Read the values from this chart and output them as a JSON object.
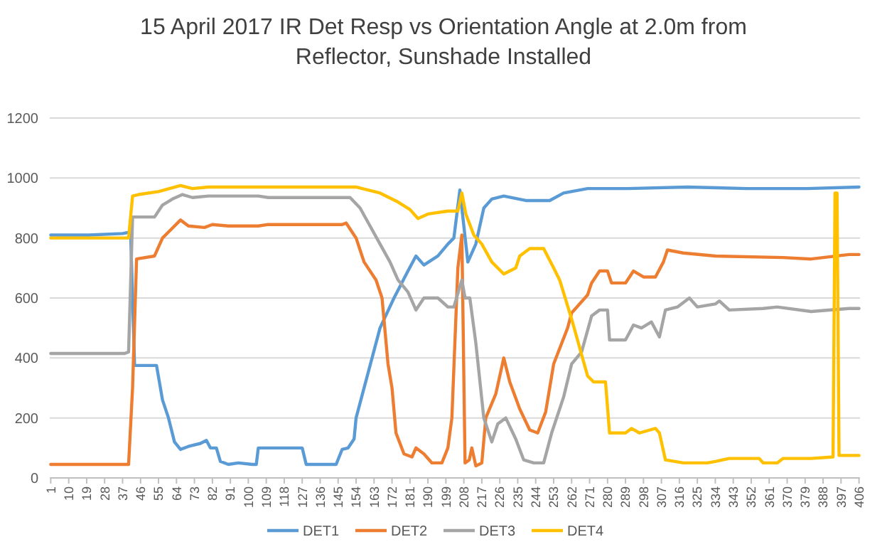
{
  "chart_data": {
    "type": "line",
    "title": "15 April 2017 IR Det Resp vs Orientation Angle at 2.0m from Reflector, Sunshade Installed",
    "xlim": [
      0.5,
      406.5
    ],
    "xticks": [
      1,
      10,
      19,
      28,
      37,
      46,
      55,
      64,
      73,
      82,
      91,
      100,
      109,
      118,
      127,
      136,
      145,
      154,
      163,
      172,
      181,
      190,
      199,
      208,
      217,
      226,
      235,
      244,
      253,
      262,
      271,
      280,
      289,
      298,
      307,
      316,
      325,
      334,
      343,
      352,
      361,
      370,
      379,
      388,
      397,
      406
    ],
    "ylim": [
      0,
      1200
    ],
    "yticks": [
      0,
      200,
      400,
      600,
      800,
      1000,
      1200
    ],
    "grid": "y",
    "legend": "bottom",
    "marker": "none",
    "line_style": "solid",
    "series": [
      {
        "name": "DET1",
        "color": "#5b9bd5",
        "x": [
          1,
          20,
          37,
          41,
          42,
          43,
          54,
          57,
          60,
          63,
          66,
          70,
          76,
          79,
          81,
          84,
          86,
          90,
          95,
          102,
          104,
          105,
          127,
          129,
          144,
          147,
          150,
          153,
          154,
          162,
          166,
          173,
          180,
          184,
          188,
          195,
          200,
          203,
          206,
          210,
          214,
          218,
          222,
          228,
          239,
          251,
          258,
          270,
          290,
          320,
          350,
          380,
          406
        ],
        "values": [
          810,
          810,
          815,
          820,
          600,
          375,
          375,
          260,
          200,
          120,
          95,
          105,
          115,
          125,
          100,
          100,
          55,
          45,
          50,
          45,
          45,
          100,
          100,
          45,
          45,
          95,
          100,
          130,
          200,
          400,
          500,
          600,
          690,
          740,
          710,
          740,
          780,
          800,
          960,
          720,
          780,
          900,
          930,
          940,
          925,
          925,
          950,
          965,
          965,
          970,
          965,
          965,
          970
        ]
      },
      {
        "name": "DET2",
        "color": "#ed7d31",
        "x": [
          1,
          40,
          42,
          44,
          53,
          57,
          60,
          66,
          70,
          78,
          82,
          90,
          105,
          110,
          147,
          149,
          154,
          158,
          164,
          167,
          170,
          172,
          174,
          178,
          182,
          184,
          188,
          192,
          197,
          200,
          202,
          205,
          207,
          208.6,
          210.7,
          212,
          214,
          217,
          219,
          224,
          228,
          231,
          236,
          241,
          245,
          249,
          253,
          260,
          262,
          270,
          272,
          276,
          280,
          282,
          289,
          293,
          298,
          304,
          308,
          310,
          318,
          334,
          368,
          382,
          401,
          406
        ],
        "values": [
          45,
          45,
          300,
          730,
          740,
          800,
          820,
          860,
          840,
          835,
          845,
          840,
          840,
          845,
          845,
          850,
          800,
          720,
          660,
          600,
          380,
          300,
          150,
          80,
          70,
          100,
          80,
          50,
          50,
          100,
          200,
          700,
          810,
          50,
          60,
          100,
          40,
          50,
          200,
          280,
          400,
          320,
          230,
          160,
          150,
          220,
          380,
          500,
          550,
          610,
          650,
          690,
          690,
          650,
          650,
          690,
          670,
          670,
          720,
          760,
          750,
          740,
          735,
          730,
          745,
          745
        ]
      },
      {
        "name": "DET3",
        "color": "#a5a5a5",
        "x": [
          1,
          38,
          40,
          42,
          53,
          57,
          62,
          67,
          72,
          80,
          105,
          110,
          151,
          156,
          161,
          166,
          171,
          175,
          180,
          184,
          188,
          195,
          200,
          203,
          207,
          208.6,
          211,
          214,
          218,
          222,
          225,
          229,
          234,
          238,
          243,
          248,
          252,
          258,
          262,
          267,
          272,
          276,
          280,
          281,
          289,
          293,
          297,
          302,
          306,
          309,
          315,
          321,
          325,
          334,
          336,
          341,
          358,
          365,
          382,
          401,
          406
        ],
        "values": [
          415,
          415,
          420,
          870,
          870,
          910,
          930,
          945,
          935,
          940,
          940,
          935,
          935,
          900,
          840,
          780,
          720,
          660,
          620,
          560,
          600,
          600,
          570,
          570,
          660,
          600,
          600,
          450,
          200,
          120,
          180,
          200,
          130,
          60,
          50,
          50,
          150,
          270,
          380,
          420,
          540,
          560,
          560,
          460,
          460,
          510,
          500,
          520,
          470,
          560,
          570,
          600,
          570,
          580,
          590,
          560,
          565,
          570,
          555,
          565,
          565
        ]
      },
      {
        "name": "DET4",
        "color": "#ffc000",
        "x": [
          1,
          40,
          42,
          45,
          55,
          66,
          72,
          80,
          150,
          154,
          166,
          175,
          181,
          185,
          190,
          200,
          205,
          207,
          209,
          213,
          217,
          222,
          228,
          234,
          236,
          241,
          248,
          253,
          256,
          262,
          270,
          273,
          279,
          281,
          289,
          292,
          296,
          304,
          306,
          309,
          318,
          330,
          334,
          341,
          356,
          358,
          365,
          368,
          382,
          393,
          394,
          395,
          396,
          401,
          406
        ],
        "values": [
          800,
          800,
          940,
          945,
          955,
          975,
          965,
          970,
          970,
          970,
          950,
          920,
          895,
          865,
          880,
          890,
          890,
          950,
          880,
          810,
          780,
          720,
          680,
          700,
          740,
          765,
          765,
          700,
          660,
          530,
          340,
          320,
          320,
          150,
          150,
          165,
          150,
          165,
          150,
          60,
          50,
          50,
          55,
          65,
          65,
          50,
          50,
          65,
          65,
          70,
          950,
          950,
          75,
          75,
          75
        ]
      }
    ]
  }
}
